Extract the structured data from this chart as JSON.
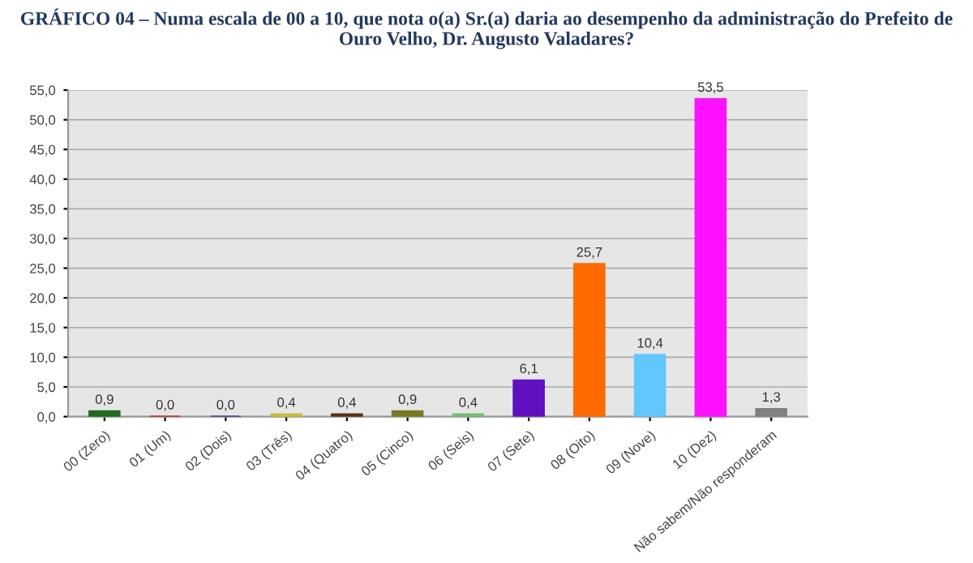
{
  "chart_data": {
    "type": "bar",
    "title": "GRÁFICO 04 – Numa escala de 00 a 10, que nota o(a) Sr.(a) daria ao desempenho da administração do Prefeito de Ouro Velho, Dr. Augusto Valadares?",
    "categories": [
      "00 (Zero)",
      "01 (Um)",
      "02 (Dois)",
      "03 (Três)",
      "04 (Quatro)",
      "05 (Cinco)",
      "06 (Seis)",
      "07 (Sete)",
      "08 (Oito)",
      "09 (Nove)",
      "10 (Dez)",
      "Não sabem/Não responderam"
    ],
    "values": [
      0.9,
      0.0,
      0.0,
      0.4,
      0.4,
      0.9,
      0.4,
      6.1,
      25.7,
      10.4,
      53.5,
      1.3
    ],
    "colors": [
      "#1f6b1f",
      "#c00000",
      "#1a1aa0",
      "#c8c030",
      "#5a3010",
      "#7a7a20",
      "#70c070",
      "#6010c0",
      "#ff6a00",
      "#60c8ff",
      "#ff10ff",
      "#808080"
    ],
    "value_labels": [
      "0,9",
      "0,0",
      "0,0",
      "0,4",
      "0,4",
      "0,9",
      "0,4",
      "6,1",
      "25,7",
      "10,4",
      "53,5",
      "1,3"
    ],
    "ylim": [
      0,
      55
    ],
    "yticks": [
      {
        "value": 0,
        "label": "0,0"
      },
      {
        "value": 5,
        "label": "5,0"
      },
      {
        "value": 10,
        "label": "10,0"
      },
      {
        "value": 15,
        "label": "15,0"
      },
      {
        "value": 20,
        "label": "20,0"
      },
      {
        "value": 25,
        "label": "25,0"
      },
      {
        "value": 30,
        "label": "30,0"
      },
      {
        "value": 35,
        "label": "35,0"
      },
      {
        "value": 40,
        "label": "40,0"
      },
      {
        "value": 45,
        "label": "45,0"
      },
      {
        "value": 50,
        "label": "50,0"
      },
      {
        "value": 55,
        "label": "55,0"
      }
    ],
    "grid": "y"
  }
}
